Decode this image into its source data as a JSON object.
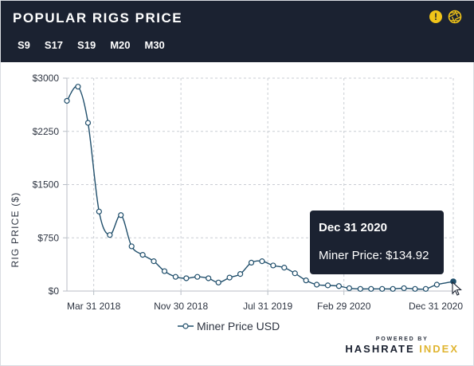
{
  "header": {
    "title": "POPULAR RIGS PRICE",
    "warning_icon": "exclamation-icon",
    "settings_icon": "aperture-icon",
    "accent_color": "#f0c419",
    "background_color": "#1b2231"
  },
  "tabs": [
    {
      "label": "S9",
      "active": true
    },
    {
      "label": "S17",
      "active": false
    },
    {
      "label": "S19",
      "active": false
    },
    {
      "label": "M20",
      "active": false
    },
    {
      "label": "M30",
      "active": false
    }
  ],
  "tooltip": {
    "date": "Dec 31 2020",
    "label": "Miner Price: $134.92"
  },
  "legend": {
    "label": "Miner Price USD"
  },
  "powered_by": {
    "line1": "POWERED BY",
    "brand_main": "HASHRATE",
    "brand_accent": "INDEX"
  },
  "chart_data": {
    "type": "line",
    "ylabel": "RIG PRICE ($)",
    "xlabel": "",
    "ylim": [
      0,
      3000
    ],
    "yticks": [
      0,
      750,
      1500,
      2250,
      3000
    ],
    "ytick_labels": [
      "$0",
      "$750",
      "$1500",
      "$2250",
      "$3000"
    ],
    "xticks": [
      "2018-03-31",
      "2018-11-30",
      "2019-07-31",
      "2020-02-29",
      "2020-12-31"
    ],
    "xtick_labels": [
      "Mar 31 2018",
      "Nov 30 2018",
      "Jul 31 2019",
      "Feb 29 2020",
      "Dec 31 2020"
    ],
    "xlim": [
      "2018-01-15",
      "2020-12-31"
    ],
    "grid": true,
    "legend_position": "bottom",
    "line_color": "#1f4e6b",
    "series": [
      {
        "name": "Miner Price USD",
        "points": [
          {
            "x": "2018-01-15",
            "y": 2680
          },
          {
            "x": "2018-02-15",
            "y": 2880
          },
          {
            "x": "2018-03-15",
            "y": 2370
          },
          {
            "x": "2018-04-15",
            "y": 1120
          },
          {
            "x": "2018-05-15",
            "y": 790
          },
          {
            "x": "2018-06-15",
            "y": 1070
          },
          {
            "x": "2018-07-15",
            "y": 630
          },
          {
            "x": "2018-08-15",
            "y": 510
          },
          {
            "x": "2018-09-15",
            "y": 420
          },
          {
            "x": "2018-10-15",
            "y": 280
          },
          {
            "x": "2018-11-15",
            "y": 200
          },
          {
            "x": "2018-12-15",
            "y": 180
          },
          {
            "x": "2019-01-15",
            "y": 200
          },
          {
            "x": "2019-02-15",
            "y": 180
          },
          {
            "x": "2019-03-15",
            "y": 120
          },
          {
            "x": "2019-04-15",
            "y": 190
          },
          {
            "x": "2019-05-15",
            "y": 240
          },
          {
            "x": "2019-06-15",
            "y": 400
          },
          {
            "x": "2019-07-15",
            "y": 420
          },
          {
            "x": "2019-08-15",
            "y": 360
          },
          {
            "x": "2019-09-15",
            "y": 330
          },
          {
            "x": "2019-10-15",
            "y": 250
          },
          {
            "x": "2019-11-15",
            "y": 150
          },
          {
            "x": "2019-12-15",
            "y": 90
          },
          {
            "x": "2020-01-15",
            "y": 80
          },
          {
            "x": "2020-02-15",
            "y": 70
          },
          {
            "x": "2020-03-15",
            "y": 40
          },
          {
            "x": "2020-04-15",
            "y": 30
          },
          {
            "x": "2020-05-15",
            "y": 30
          },
          {
            "x": "2020-06-15",
            "y": 30
          },
          {
            "x": "2020-07-15",
            "y": 30
          },
          {
            "x": "2020-08-15",
            "y": 40
          },
          {
            "x": "2020-09-15",
            "y": 30
          },
          {
            "x": "2020-10-15",
            "y": 30
          },
          {
            "x": "2020-11-15",
            "y": 90
          },
          {
            "x": "2020-12-31",
            "y": 134.92
          }
        ]
      }
    ]
  }
}
